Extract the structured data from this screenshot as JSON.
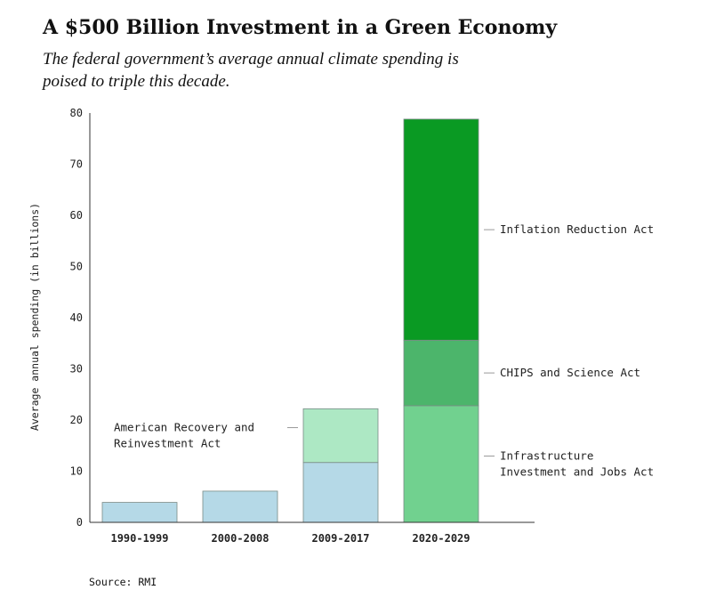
{
  "title": "A $500 Billion Investment in a Green Economy",
  "subtitle": "The federal government’s average annual climate spending is poised to triple this decade.",
  "source": "Source: RMI",
  "colors": {
    "base": "#b5d9e7",
    "arra": "#ade8c4",
    "iija": "#71d18f",
    "chips": "#4cb56b",
    "ira": "#0a9a23",
    "axis": "#333333"
  },
  "chart_data": {
    "type": "bar",
    "stacked": true,
    "categories": [
      "1990-1999",
      "2000-2008",
      "2009-2017",
      "2020-2029"
    ],
    "series": [
      {
        "key": "baseline",
        "values": [
          3.9,
          6.1,
          11.7,
          0
        ],
        "color": "#b5d9e7"
      },
      {
        "key": "arra",
        "name": "American Recovery and Reinvestment Act",
        "values": [
          0,
          0,
          10.5,
          0
        ],
        "color": "#ade8c4"
      },
      {
        "key": "iija",
        "name": "Infrastructure Investment and Jobs Act",
        "values": [
          0,
          0,
          0,
          22.8
        ],
        "color": "#71d18f"
      },
      {
        "key": "chips",
        "name": "CHIPS and Science Act",
        "values": [
          0,
          0,
          0,
          12.8
        ],
        "color": "#4cb56b"
      },
      {
        "key": "ira",
        "name": "Inflation Reduction Act",
        "values": [
          0,
          0,
          0,
          43.2
        ],
        "color": "#0a9a23"
      }
    ],
    "ylabel": "Average annual spending (in billions)",
    "ylim": [
      0,
      80
    ],
    "yticks": [
      0,
      10,
      20,
      30,
      40,
      50,
      60,
      70,
      80
    ],
    "grid": false,
    "annotations": [
      {
        "series": "arra",
        "lines": [
          "American Recovery and",
          "Reinvestment Act"
        ],
        "side": "left"
      },
      {
        "series": "iija",
        "lines": [
          "Infrastructure",
          "Investment and Jobs Act"
        ],
        "side": "right"
      },
      {
        "series": "chips",
        "lines": [
          "CHIPS and Science Act"
        ],
        "side": "right"
      },
      {
        "series": "ira",
        "lines": [
          "Inflation Reduction Act"
        ],
        "side": "right"
      }
    ]
  }
}
